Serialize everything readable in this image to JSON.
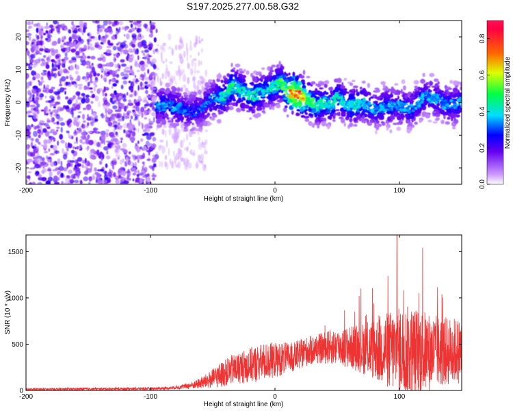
{
  "title": "S197.2025.277.00.58.G32",
  "chart_data": [
    {
      "type": "heatmap",
      "title": "S197.2025.277.00.58.G32",
      "xlabel": "Height of straight line (km)",
      "ylabel": "Frequency (Hz)",
      "xlim": [
        -200,
        150
      ],
      "ylim": [
        -25,
        25
      ],
      "xticks": [
        -200,
        -100,
        0,
        100
      ],
      "xtick_labels": [
        "-200",
        "-100",
        "0",
        "100"
      ],
      "yticks": [
        -20,
        -10,
        0,
        10,
        20
      ],
      "ytick_labels": [
        "-20",
        "-10",
        "0",
        "10",
        "20"
      ],
      "colorbar": {
        "label": "Normalized spectral amplitude",
        "range": [
          0.0,
          0.9
        ],
        "ticks": [
          0.0,
          0.2,
          0.4,
          0.6,
          0.8
        ],
        "tick_labels": [
          "0.0",
          "0.2",
          "0.4",
          "0.6",
          "0.8"
        ]
      },
      "ridge": {
        "x": [
          -95,
          -80,
          -70,
          -60,
          -50,
          -40,
          -35,
          -30,
          -20,
          -10,
          0,
          5,
          10,
          15,
          20,
          25,
          30,
          35,
          40,
          45,
          50,
          55,
          60,
          65,
          70,
          80,
          90,
          100,
          110,
          120,
          130,
          140,
          150
        ],
        "y": [
          -1,
          -1,
          -3,
          -2,
          1,
          2,
          5,
          4,
          2,
          3,
          5,
          6,
          3,
          3,
          2,
          1,
          0,
          -1,
          0,
          -1,
          2,
          0,
          -1,
          -1,
          0,
          -2,
          -1,
          -1,
          -2,
          2,
          1,
          -1,
          0
        ],
        "amp": [
          0.35,
          0.35,
          0.3,
          0.3,
          0.35,
          0.45,
          0.5,
          0.45,
          0.45,
          0.4,
          0.45,
          0.5,
          0.6,
          0.85,
          0.85,
          0.55,
          0.5,
          0.45,
          0.45,
          0.4,
          0.45,
          0.4,
          0.4,
          0.45,
          0.4,
          0.35,
          0.35,
          0.35,
          0.35,
          0.35,
          0.35,
          0.35,
          0.35
        ]
      },
      "noise_region_x": [
        -200,
        -95
      ]
    },
    {
      "type": "line",
      "xlabel": "Height of straight line (km)",
      "ylabel": "SNR (10 * v/v)",
      "xlim": [
        -200,
        150
      ],
      "ylim": [
        0,
        1680
      ],
      "xticks": [
        -200,
        -100,
        0,
        100
      ],
      "xtick_labels": [
        "-200",
        "-100",
        "0",
        "100"
      ],
      "yticks": [
        0,
        500,
        1000,
        1500
      ],
      "ytick_labels": [
        "0",
        "500",
        "1000",
        "1500"
      ],
      "color": "#ee3333",
      "envelope": {
        "x": [
          -200,
          -160,
          -120,
          -100,
          -85,
          -75,
          -65,
          -55,
          -45,
          -35,
          -25,
          -15,
          -5,
          5,
          15,
          25,
          35,
          45,
          55,
          65,
          75,
          85,
          95,
          105,
          115,
          125,
          135,
          150
        ],
        "base": [
          10,
          15,
          18,
          20,
          25,
          40,
          60,
          100,
          160,
          220,
          260,
          290,
          320,
          340,
          360,
          420,
          450,
          470,
          470,
          460,
          450,
          440,
          430,
          420,
          420,
          410,
          420,
          430
        ],
        "amp": [
          15,
          15,
          15,
          15,
          15,
          25,
          40,
          80,
          130,
          160,
          180,
          200,
          200,
          180,
          160,
          160,
          160,
          190,
          210,
          250,
          300,
          380,
          450,
          500,
          480,
          420,
          380,
          350
        ]
      },
      "peak": {
        "x": 98,
        "y": 1680
      }
    }
  ]
}
